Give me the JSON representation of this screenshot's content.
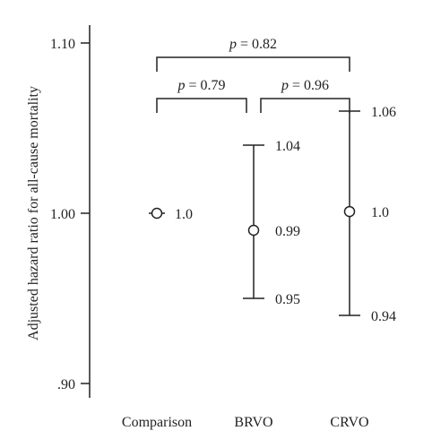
{
  "chart_data": {
    "type": "errorbar",
    "ylabel": "Adjusted hazard ratio for all-cause mortality",
    "ylim": [
      0.9,
      1.1
    ],
    "yticks": [
      {
        "value": 1.1,
        "label": "1.10"
      },
      {
        "value": 1.0,
        "label": "1.00"
      },
      {
        "value": 0.9,
        "label": ".90"
      }
    ],
    "categories": [
      "Comparison",
      "BRVO",
      "CRVO"
    ],
    "points": [
      {
        "category": "Comparison",
        "estimate": 1.0,
        "lower": null,
        "upper": null,
        "estimate_label": "1.0",
        "lower_label": "",
        "upper_label": ""
      },
      {
        "category": "BRVO",
        "estimate": 0.99,
        "lower": 0.95,
        "upper": 1.04,
        "estimate_label": "0.99",
        "lower_label": "0.95",
        "upper_label": "1.04"
      },
      {
        "category": "CRVO",
        "estimate": 1.001,
        "lower": 0.94,
        "upper": 1.06,
        "estimate_label": "1.0",
        "lower_label": "0.94",
        "upper_label": "1.06"
      }
    ],
    "comparisons": [
      {
        "from": "Comparison",
        "to": "CRVO",
        "p_symbol": "p",
        "p_text": " = 0.82",
        "level": 1
      },
      {
        "from": "Comparison",
        "to": "BRVO",
        "p_symbol": "p",
        "p_text": " = 0.79",
        "level": 0
      },
      {
        "from": "BRVO",
        "to": "CRVO",
        "p_symbol": "p",
        "p_text": " = 0.96",
        "level": 0
      }
    ],
    "grid": false,
    "colors": {
      "ink": "#222222"
    }
  }
}
